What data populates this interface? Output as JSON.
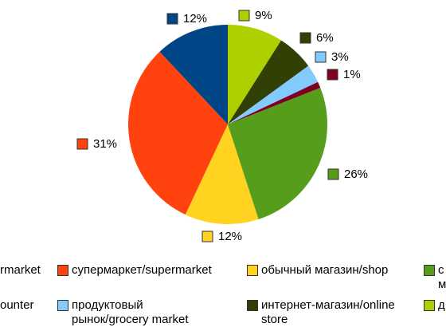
{
  "chart_data": {
    "type": "pie",
    "categories": [
      "rmarket",
      "супермаркет/supermarket",
      "обычный магазин/shop",
      "с м",
      "ounter",
      "продуктовый рынок/grocery market",
      "интернет-магазин/online store",
      "д"
    ],
    "values": [
      12,
      31,
      12,
      26,
      1,
      3,
      6,
      9
    ],
    "value_labels": [
      "12%",
      "31%",
      "12%",
      "26%",
      "1%",
      "3%",
      "6%",
      "9%"
    ],
    "colors": [
      "#004586",
      "#ff420e",
      "#ffd320",
      "#579d1c",
      "#7e0021",
      "#83caff",
      "#314004",
      "#aecf00"
    ]
  }
}
